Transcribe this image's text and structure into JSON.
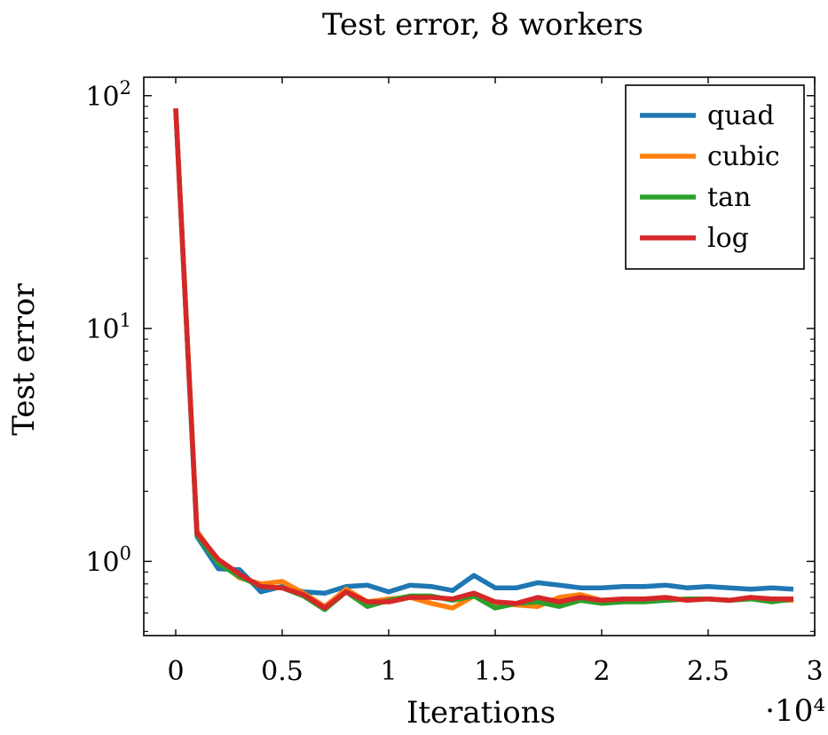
{
  "chart_data": {
    "type": "line",
    "title": "Test error, 8 workers",
    "xlabel": "Iterations",
    "ylabel": "Test error",
    "x_multiplier_label": "·10⁴",
    "xlim": [
      -0.15,
      3.0
    ],
    "ylim": [
      0.48,
      120
    ],
    "yscale": "log",
    "legend_position": "top-right",
    "grid": false,
    "x_ticks": [
      0,
      0.5,
      1,
      1.5,
      2,
      2.5,
      3
    ],
    "x_tick_labels": [
      "0",
      "0.5",
      "1",
      "1.5",
      "2",
      "2.5",
      "3"
    ],
    "y_ticks": [
      1,
      10,
      100
    ],
    "y_tick_labels": [
      [
        "10",
        "0"
      ],
      [
        "10",
        "1"
      ],
      [
        "10",
        "2"
      ]
    ],
    "x": [
      0,
      0.1,
      0.2,
      0.3,
      0.4,
      0.5,
      0.6,
      0.7,
      0.8,
      0.9,
      1.0,
      1.1,
      1.2,
      1.3,
      1.4,
      1.5,
      1.6,
      1.7,
      1.8,
      1.9,
      2.0,
      2.1,
      2.2,
      2.3,
      2.4,
      2.5,
      2.6,
      2.7,
      2.8,
      2.9
    ],
    "series": [
      {
        "name": "quad",
        "color": "#1f77b4",
        "values": [
          88,
          1.28,
          0.93,
          0.92,
          0.74,
          0.78,
          0.74,
          0.73,
          0.78,
          0.79,
          0.74,
          0.79,
          0.78,
          0.75,
          0.87,
          0.77,
          0.77,
          0.81,
          0.79,
          0.77,
          0.77,
          0.78,
          0.78,
          0.79,
          0.77,
          0.78,
          0.77,
          0.76,
          0.77,
          0.76
        ]
      },
      {
        "name": "cubic",
        "color": "#ff7f0e",
        "values": [
          88,
          1.35,
          1.0,
          0.85,
          0.8,
          0.82,
          0.73,
          0.64,
          0.76,
          0.67,
          0.69,
          0.7,
          0.66,
          0.63,
          0.71,
          0.66,
          0.65,
          0.64,
          0.7,
          0.72,
          0.68,
          0.69,
          0.68,
          0.68,
          0.69,
          0.69,
          0.68,
          0.7,
          0.68,
          0.68
        ]
      },
      {
        "name": "tan",
        "color": "#2ca02c",
        "values": [
          88,
          1.3,
          0.98,
          0.86,
          0.78,
          0.77,
          0.71,
          0.62,
          0.74,
          0.64,
          0.68,
          0.71,
          0.71,
          0.68,
          0.71,
          0.63,
          0.66,
          0.67,
          0.64,
          0.68,
          0.66,
          0.67,
          0.67,
          0.68,
          0.69,
          0.69,
          0.68,
          0.69,
          0.67,
          0.69
        ]
      },
      {
        "name": "log",
        "color": "#d62728",
        "values": [
          88,
          1.32,
          1.02,
          0.88,
          0.78,
          0.77,
          0.72,
          0.63,
          0.74,
          0.67,
          0.67,
          0.7,
          0.7,
          0.69,
          0.73,
          0.67,
          0.66,
          0.7,
          0.67,
          0.7,
          0.68,
          0.69,
          0.69,
          0.7,
          0.68,
          0.69,
          0.68,
          0.7,
          0.69,
          0.69
        ]
      }
    ]
  }
}
